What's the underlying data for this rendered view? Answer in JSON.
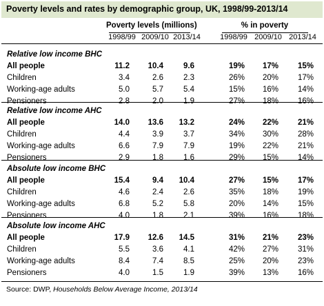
{
  "title": "Poverty levels and rates by demographic group, UK, 1998/99-2013/14",
  "column_groups": [
    "Poverty levels (millions)",
    "% in poverty"
  ],
  "years": [
    "1998/99",
    "2009/10",
    "2013/14",
    "1998/99",
    "2009/10",
    "2013/14"
  ],
  "sections": [
    {
      "title": "Relative low income BHC",
      "rows": [
        {
          "label": "All people",
          "values": [
            "11.2",
            "10.4",
            "9.6",
            "19%",
            "17%",
            "15%"
          ]
        },
        {
          "label": "Children",
          "values": [
            "3.4",
            "2.6",
            "2.3",
            "26%",
            "20%",
            "17%"
          ]
        },
        {
          "label": "Working-age adults",
          "values": [
            "5.0",
            "5.7",
            "5.4",
            "15%",
            "16%",
            "14%"
          ]
        },
        {
          "label": "Pensioners",
          "values": [
            "2.8",
            "2.0",
            "1.9",
            "27%",
            "18%",
            "16%"
          ]
        }
      ]
    },
    {
      "title": "Relative low income AHC",
      "rows": [
        {
          "label": "All people",
          "values": [
            "14.0",
            "13.6",
            "13.2",
            "24%",
            "22%",
            "21%"
          ]
        },
        {
          "label": "Children",
          "values": [
            "4.4",
            "3.9",
            "3.7",
            "34%",
            "30%",
            "28%"
          ]
        },
        {
          "label": "Working-age adults",
          "values": [
            "6.6",
            "7.9",
            "7.9",
            "19%",
            "22%",
            "21%"
          ]
        },
        {
          "label": "Pensioners",
          "values": [
            "2.9",
            "1.8",
            "1.6",
            "29%",
            "15%",
            "14%"
          ]
        }
      ]
    },
    {
      "title": "Absolute low income BHC",
      "rows": [
        {
          "label": "All people",
          "values": [
            "15.4",
            "9.4",
            "10.4",
            "27%",
            "15%",
            "17%"
          ]
        },
        {
          "label": "Children",
          "values": [
            "4.6",
            "2.4",
            "2.6",
            "35%",
            "18%",
            "19%"
          ]
        },
        {
          "label": "Working-age adults",
          "values": [
            "6.8",
            "5.2",
            "5.8",
            "20%",
            "14%",
            "15%"
          ]
        },
        {
          "label": "Pensioners",
          "values": [
            "4.0",
            "1.8",
            "2.1",
            "39%",
            "16%",
            "18%"
          ]
        }
      ]
    },
    {
      "title": "Absolute low income AHC",
      "rows": [
        {
          "label": "All people",
          "values": [
            "17.9",
            "12.6",
            "14.5",
            "31%",
            "21%",
            "23%"
          ]
        },
        {
          "label": "Children",
          "values": [
            "5.5",
            "3.6",
            "4.1",
            "42%",
            "27%",
            "31%"
          ]
        },
        {
          "label": "Working-age adults",
          "values": [
            "8.4",
            "7.4",
            "8.5",
            "25%",
            "20%",
            "23%"
          ]
        },
        {
          "label": "Pensioners",
          "values": [
            "4.0",
            "1.5",
            "1.9",
            "39%",
            "13%",
            "16%"
          ]
        }
      ]
    }
  ],
  "source_prefix": "Source: DWP, ",
  "source_title": "Households Below Average Income, 2013/14"
}
